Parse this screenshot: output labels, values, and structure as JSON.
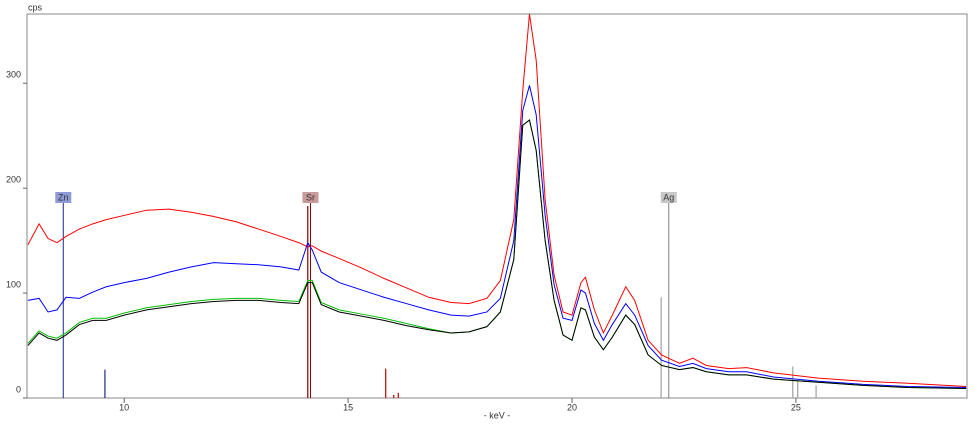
{
  "chart_data": {
    "type": "line",
    "ylabel": "cps",
    "xlabel": "- keV -",
    "xlim": [
      7.83,
      28.82
    ],
    "ylim": [
      0,
      366
    ],
    "xticks": [
      10,
      15,
      20,
      25
    ],
    "yticks": [
      0,
      100,
      200,
      300
    ],
    "x": [
      7.85,
      8.1,
      8.3,
      8.5,
      8.7,
      9.0,
      9.3,
      9.6,
      10,
      10.5,
      11,
      11.5,
      12,
      12.5,
      13,
      13.5,
      13.9,
      14.1,
      14.2,
      14.4,
      14.8,
      15.3,
      15.8,
      16.3,
      16.8,
      17.3,
      17.7,
      18.1,
      18.4,
      18.7,
      18.9,
      19.05,
      19.2,
      19.4,
      19.6,
      19.8,
      20.0,
      20.2,
      20.3,
      20.5,
      20.7,
      20.9,
      21.2,
      21.4,
      21.7,
      22.0,
      22.4,
      22.7,
      23.0,
      23.5,
      23.9,
      24.5,
      25.5,
      26.5,
      27.5,
      28.8
    ],
    "series": [
      {
        "color": "#ff0000",
        "values": [
          146,
          166,
          152,
          148,
          154,
          161,
          166,
          170,
          174,
          179,
          180,
          177,
          173,
          168,
          161,
          154,
          148,
          144,
          145,
          140,
          133,
          124,
          114,
          105,
          96,
          91,
          90,
          95,
          112,
          170,
          293,
          366,
          322,
          189,
          117,
          82,
          79,
          110,
          115,
          84,
          62,
          79,
          106,
          93,
          55,
          41,
          33,
          38,
          31,
          28,
          29,
          24,
          19,
          16,
          14,
          11
        ]
      },
      {
        "color": "#0000ff",
        "values": [
          93,
          95,
          82,
          84,
          96,
          95,
          101,
          106,
          110,
          114,
          120,
          125,
          129,
          128,
          127,
          125,
          122,
          148,
          141,
          120,
          110,
          103,
          96,
          90,
          84,
          79,
          78,
          82,
          95,
          150,
          274,
          298,
          270,
          174,
          108,
          76,
          74,
          103,
          100,
          71,
          55,
          70,
          90,
          79,
          50,
          36,
          30,
          33,
          28,
          25,
          25,
          20,
          16,
          13,
          11,
          10
        ]
      },
      {
        "color": "#00c000",
        "values": [
          52,
          64,
          59,
          57,
          62,
          72,
          76,
          76,
          81,
          86,
          89,
          92,
          94,
          95,
          95,
          93,
          92,
          112,
          112,
          91,
          84,
          80,
          76,
          71,
          66,
          62,
          63,
          68,
          82,
          132,
          260,
          265,
          236,
          150,
          93,
          60,
          55,
          86,
          84,
          58,
          46,
          58,
          79,
          70,
          41,
          31,
          27,
          29,
          25,
          22,
          22,
          18,
          15,
          12,
          10,
          9
        ]
      },
      {
        "color": "#000000",
        "values": [
          50,
          62,
          57,
          55,
          60,
          70,
          74,
          74,
          79,
          84,
          87,
          90,
          92,
          93,
          93,
          91,
          90,
          110,
          110,
          89,
          82,
          78,
          74,
          69,
          65,
          62,
          63,
          68,
          82,
          132,
          260,
          265,
          236,
          150,
          93,
          60,
          55,
          86,
          84,
          58,
          46,
          58,
          79,
          70,
          41,
          31,
          27,
          29,
          25,
          22,
          22,
          18,
          15,
          12,
          10,
          9
        ]
      }
    ],
    "markers": [
      {
        "label": "Zn",
        "x": 8.64,
        "color": "#8f9bd6",
        "line": "#1a2a8a"
      },
      {
        "label": "Sr",
        "x": 14.16,
        "color": "#c99a9a",
        "line": "#8b0000"
      },
      {
        "label": "Ag",
        "x": 22.16,
        "color": "#c8c8c8",
        "line": "#808080"
      }
    ],
    "sticks": {
      "x": [
        9.57,
        14.1,
        15.84,
        16.02,
        16.12,
        21.99,
        24.93,
        25.04,
        25.45
      ],
      "values": [
        27,
        183,
        28,
        3,
        5,
        96,
        30,
        16,
        12
      ],
      "colors": [
        "#1a2a8a",
        "#8b0000",
        "#c00000",
        "#c00000",
        "#c00000",
        "#a0a0a0",
        "#a0a0a0",
        "#a0a0a0",
        "#a0a0a0"
      ]
    }
  }
}
